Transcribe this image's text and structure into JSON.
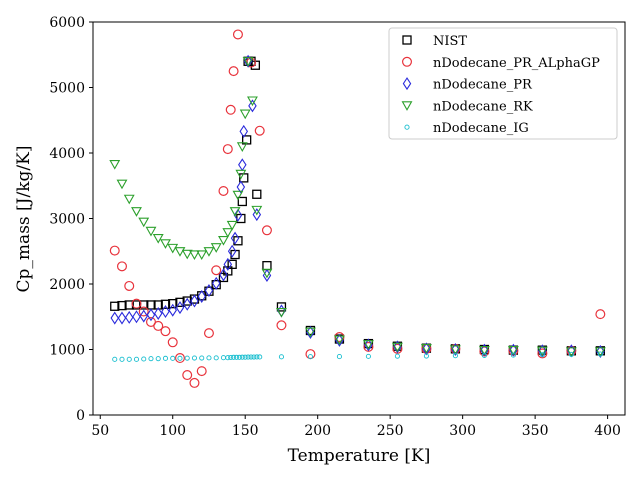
{
  "chart_data": {
    "type": "scatter",
    "xlabel": "Temperature [K]",
    "ylabel": "Cp_mass [J/kg/K]",
    "xlim": [
      45,
      412
    ],
    "ylim": [
      0,
      6000
    ],
    "xticks": [
      50,
      100,
      150,
      200,
      250,
      300,
      350,
      400
    ],
    "yticks": [
      0,
      1000,
      2000,
      3000,
      4000,
      5000,
      6000
    ],
    "grid": false,
    "legend_position": "top-right",
    "series": [
      {
        "name": "NIST",
        "marker": "square",
        "color": "#000000",
        "points": [
          [
            60,
            1660
          ],
          [
            65,
            1670
          ],
          [
            70,
            1680
          ],
          [
            75,
            1680
          ],
          [
            80,
            1680
          ],
          [
            85,
            1680
          ],
          [
            90,
            1680
          ],
          [
            95,
            1690
          ],
          [
            100,
            1700
          ],
          [
            105,
            1720
          ],
          [
            110,
            1740
          ],
          [
            115,
            1770
          ],
          [
            120,
            1820
          ],
          [
            125,
            1890
          ],
          [
            130,
            1990
          ],
          [
            135,
            2100
          ],
          [
            138,
            2200
          ],
          [
            141,
            2300
          ],
          [
            143,
            2450
          ],
          [
            145,
            2660
          ],
          [
            147,
            3000
          ],
          [
            148,
            3260
          ],
          [
            149,
            3620
          ],
          [
            151,
            4200
          ],
          [
            152,
            5400
          ],
          [
            154,
            5400
          ],
          [
            157,
            5340
          ],
          [
            158,
            3370
          ],
          [
            165,
            2280
          ],
          [
            175,
            1650
          ],
          [
            195,
            1290
          ],
          [
            215,
            1160
          ],
          [
            235,
            1090
          ],
          [
            255,
            1050
          ],
          [
            275,
            1020
          ],
          [
            295,
            1010
          ],
          [
            315,
            1000
          ],
          [
            335,
            990
          ],
          [
            355,
            990
          ],
          [
            375,
            980
          ],
          [
            395,
            980
          ]
        ]
      },
      {
        "name": "nDodecane_PR_ALphaGP",
        "marker": "circle",
        "color": "#e8333c",
        "points": [
          [
            60,
            2510
          ],
          [
            65,
            2270
          ],
          [
            70,
            1970
          ],
          [
            75,
            1700
          ],
          [
            80,
            1580
          ],
          [
            85,
            1420
          ],
          [
            90,
            1360
          ],
          [
            95,
            1280
          ],
          [
            100,
            1110
          ],
          [
            105,
            870
          ],
          [
            110,
            610
          ],
          [
            115,
            490
          ],
          [
            120,
            670
          ],
          [
            125,
            1250
          ],
          [
            130,
            2210
          ],
          [
            135,
            3420
          ],
          [
            138,
            4060
          ],
          [
            140,
            4660
          ],
          [
            142,
            5250
          ],
          [
            145,
            5810
          ],
          [
            154,
            5380
          ],
          [
            160,
            4340
          ],
          [
            165,
            2820
          ],
          [
            175,
            1370
          ],
          [
            195,
            930
          ],
          [
            215,
            1190
          ],
          [
            235,
            1040
          ],
          [
            255,
            1010
          ],
          [
            275,
            1010
          ],
          [
            295,
            1010
          ],
          [
            315,
            970
          ],
          [
            335,
            980
          ],
          [
            355,
            940
          ],
          [
            375,
            980
          ],
          [
            395,
            1540
          ]
        ]
      },
      {
        "name": "nDodecane_PR",
        "marker": "diamond",
        "color": "#2b2bdc",
        "points": [
          [
            60,
            1480
          ],
          [
            65,
            1480
          ],
          [
            70,
            1490
          ],
          [
            75,
            1500
          ],
          [
            80,
            1510
          ],
          [
            85,
            1530
          ],
          [
            90,
            1550
          ],
          [
            95,
            1580
          ],
          [
            100,
            1600
          ],
          [
            105,
            1640
          ],
          [
            110,
            1690
          ],
          [
            115,
            1740
          ],
          [
            120,
            1810
          ],
          [
            125,
            1900
          ],
          [
            130,
            2010
          ],
          [
            135,
            2140
          ],
          [
            138,
            2300
          ],
          [
            141,
            2500
          ],
          [
            143,
            2700
          ],
          [
            145,
            3050
          ],
          [
            147,
            3480
          ],
          [
            148,
            3820
          ],
          [
            149,
            4330
          ],
          [
            152,
            5400
          ],
          [
            155,
            4720
          ],
          [
            158,
            3060
          ],
          [
            165,
            2130
          ],
          [
            175,
            1590
          ],
          [
            195,
            1260
          ],
          [
            215,
            1140
          ],
          [
            235,
            1070
          ],
          [
            255,
            1040
          ],
          [
            275,
            1010
          ],
          [
            295,
            1000
          ],
          [
            315,
            990
          ],
          [
            335,
            990
          ],
          [
            355,
            980
          ],
          [
            375,
            980
          ],
          [
            395,
            970
          ]
        ]
      },
      {
        "name": "nDodecane_RK",
        "marker": "triangle-down",
        "color": "#2ca02c",
        "points": [
          [
            60,
            3830
          ],
          [
            65,
            3530
          ],
          [
            70,
            3300
          ],
          [
            75,
            3110
          ],
          [
            80,
            2950
          ],
          [
            85,
            2810
          ],
          [
            90,
            2700
          ],
          [
            95,
            2620
          ],
          [
            100,
            2550
          ],
          [
            105,
            2500
          ],
          [
            110,
            2460
          ],
          [
            115,
            2450
          ],
          [
            120,
            2450
          ],
          [
            125,
            2500
          ],
          [
            130,
            2560
          ],
          [
            135,
            2670
          ],
          [
            138,
            2790
          ],
          [
            141,
            2900
          ],
          [
            143,
            3110
          ],
          [
            145,
            3360
          ],
          [
            147,
            3680
          ],
          [
            148,
            4100
          ],
          [
            150,
            4600
          ],
          [
            152,
            5400
          ],
          [
            155,
            4800
          ],
          [
            158,
            3130
          ],
          [
            165,
            2170
          ],
          [
            175,
            1570
          ],
          [
            195,
            1270
          ],
          [
            215,
            1150
          ],
          [
            235,
            1080
          ],
          [
            255,
            1040
          ],
          [
            275,
            1020
          ],
          [
            295,
            1000
          ],
          [
            315,
            990
          ],
          [
            335,
            990
          ],
          [
            355,
            980
          ],
          [
            375,
            970
          ],
          [
            395,
            970
          ]
        ]
      },
      {
        "name": "nDodecane_IG",
        "marker": "small-circle",
        "color": "#17becf",
        "points": [
          [
            60,
            850
          ],
          [
            65,
            850
          ],
          [
            70,
            850
          ],
          [
            75,
            850
          ],
          [
            80,
            855
          ],
          [
            85,
            860
          ],
          [
            90,
            860
          ],
          [
            95,
            865
          ],
          [
            100,
            865
          ],
          [
            105,
            865
          ],
          [
            110,
            868
          ],
          [
            115,
            870
          ],
          [
            120,
            870
          ],
          [
            125,
            872
          ],
          [
            130,
            872
          ],
          [
            135,
            875
          ],
          [
            138,
            875
          ],
          [
            140,
            878
          ],
          [
            142,
            880
          ],
          [
            144,
            880
          ],
          [
            146,
            880
          ],
          [
            148,
            882
          ],
          [
            150,
            882
          ],
          [
            152,
            884
          ],
          [
            154,
            885
          ],
          [
            156,
            885
          ],
          [
            158,
            886
          ],
          [
            160,
            886
          ],
          [
            175,
            888
          ],
          [
            195,
            890
          ],
          [
            215,
            892
          ],
          [
            235,
            895
          ],
          [
            255,
            898
          ],
          [
            275,
            900
          ],
          [
            295,
            905
          ],
          [
            315,
            910
          ],
          [
            335,
            915
          ],
          [
            355,
            920
          ],
          [
            375,
            925
          ],
          [
            395,
            930
          ]
        ]
      }
    ]
  }
}
